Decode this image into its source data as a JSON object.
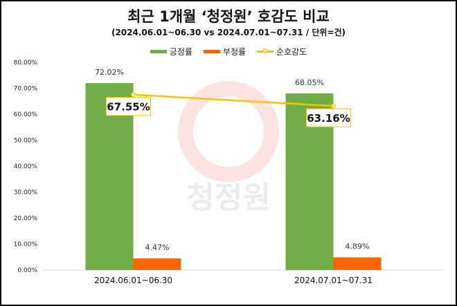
{
  "chart_data": {
    "type": "bar",
    "title": "최근 1개월 ‘청정원’ 호감도 비교",
    "subtitle": "(2024.06.01~06.30 vs 2024.07.01~07.31  / 단위=건)",
    "categories": [
      "2024.06.01~06.30",
      "2024.07.01~07.31"
    ],
    "series": [
      {
        "name": "긍정률",
        "kind": "bar",
        "color": "#70ad47",
        "values": [
          72.02,
          68.05
        ],
        "labels": [
          "72.02%",
          "68.05%"
        ]
      },
      {
        "name": "부정률",
        "kind": "bar",
        "color": "#ff6600",
        "values": [
          4.47,
          4.89
        ],
        "labels": [
          "4.47%",
          "4.89%"
        ]
      },
      {
        "name": "순호감도",
        "kind": "line",
        "color": "#ffc000",
        "values": [
          67.55,
          63.16
        ],
        "labels": [
          "67.55%",
          "63.16%"
        ]
      }
    ],
    "ylim": [
      0,
      80
    ],
    "yticks": [
      "0.00%",
      "10.00%",
      "20.00%",
      "30.00%",
      "40.00%",
      "50.00%",
      "60.00%",
      "70.00%",
      "80.00%"
    ],
    "legend_position": "top-center",
    "grid": false,
    "watermark": "청정원"
  }
}
